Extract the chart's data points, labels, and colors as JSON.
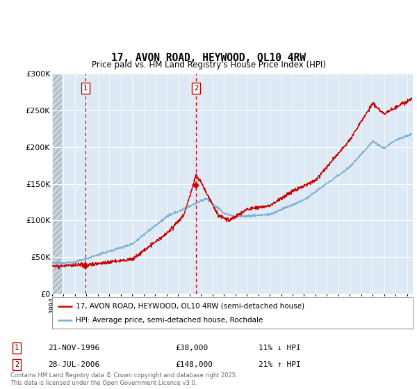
{
  "title": "17, AVON ROAD, HEYWOOD, OL10 4RW",
  "subtitle": "Price paid vs. HM Land Registry's House Price Index (HPI)",
  "xmin": 1994.0,
  "xmax": 2025.5,
  "ymin": 0,
  "ymax": 300000,
  "yticks": [
    0,
    50000,
    100000,
    150000,
    200000,
    250000,
    300000
  ],
  "ytick_labels": [
    "£0",
    "£50K",
    "£100K",
    "£150K",
    "£200K",
    "£250K",
    "£300K"
  ],
  "hatch_region_end": 1994.85,
  "marker1_x": 1996.9,
  "marker1_y": 38000,
  "marker1_label": "1",
  "marker1_date": "21-NOV-1996",
  "marker1_price": "£38,000",
  "marker1_hpi": "11% ↓ HPI",
  "marker2_x": 2006.58,
  "marker2_y": 148000,
  "marker2_label": "2",
  "marker2_date": "28-JUL-2006",
  "marker2_price": "£148,000",
  "marker2_hpi": "21% ↑ HPI",
  "sale_color": "#cc0000",
  "hpi_color": "#7ab0d4",
  "legend_label1": "17, AVON ROAD, HEYWOOD, OL10 4RW (semi-detached house)",
  "legend_label2": "HPI: Average price, semi-detached house, Rochdale",
  "footer": "Contains HM Land Registry data © Crown copyright and database right 2025.\nThis data is licensed under the Open Government Licence v3.0.",
  "background_color": "#ddeaf5",
  "hatch_bg_color": "#c8d4e0",
  "grid_color": "#ffffff",
  "vline_color": "#cc0000"
}
